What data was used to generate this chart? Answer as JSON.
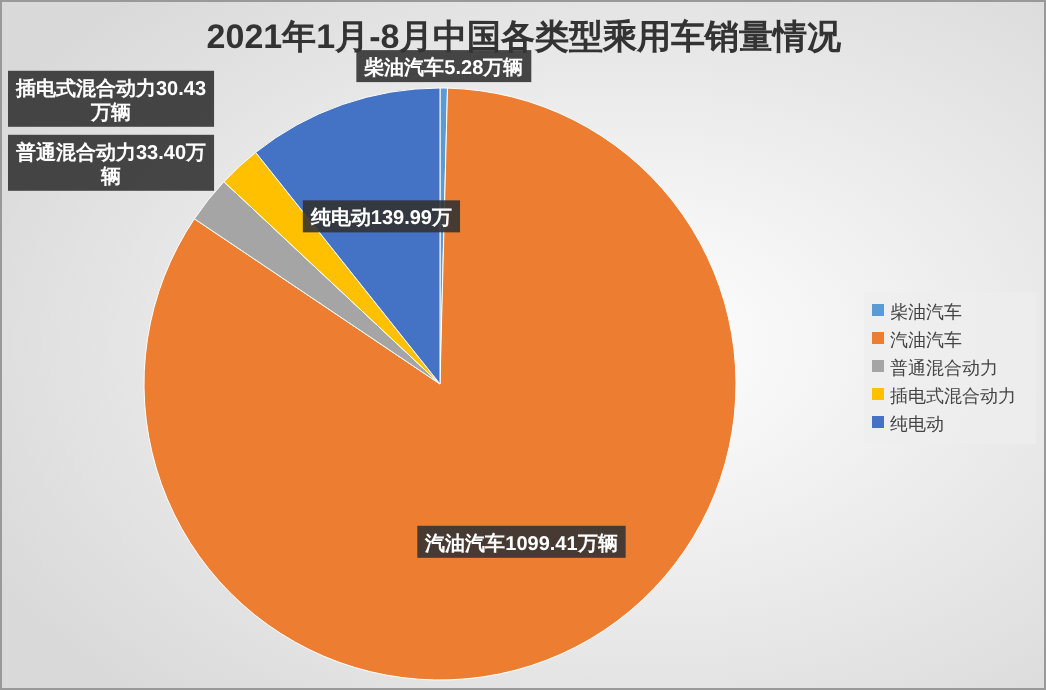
{
  "chart_data": {
    "type": "pie",
    "title": "2021年1月-8月中国各类型乘用车销量情况",
    "categories": [
      "柴油汽车",
      "汽油汽车",
      "普通混合动力",
      "插电式混合动力",
      "纯电动"
    ],
    "values": [
      5.28,
      1099.41,
      33.4,
      30.43,
      139.99
    ],
    "colors": [
      "#5b9bd5",
      "#ed7d31",
      "#a5a5a5",
      "#ffc000",
      "#4472c4"
    ],
    "value_labels": [
      "柴油汽车5.28万辆",
      "汽油汽车1099.41万辆",
      "普通混合动力33.40万辆",
      "插电式混合动力30.43万辆",
      "纯电动139.99万"
    ],
    "legend": "right"
  }
}
